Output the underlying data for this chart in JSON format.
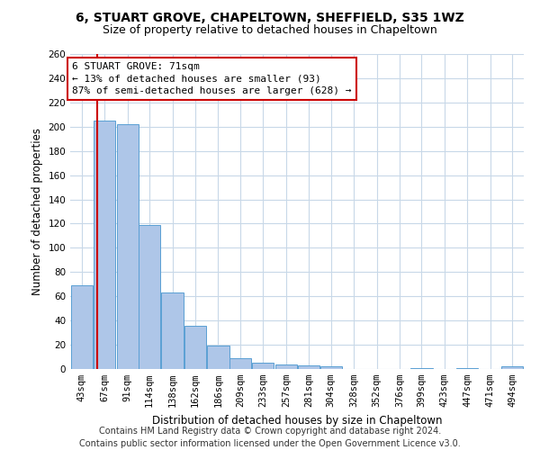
{
  "title_line1": "6, STUART GROVE, CHAPELTOWN, SHEFFIELD, S35 1WZ",
  "title_line2": "Size of property relative to detached houses in Chapeltown",
  "xlabel": "Distribution of detached houses by size in Chapeltown",
  "ylabel": "Number of detached properties",
  "bar_color": "#aec6e8",
  "bar_edge_color": "#5a9fd4",
  "vline_color": "#cc0000",
  "vline_x": 71,
  "annotation_line1": "6 STUART GROVE: 71sqm",
  "annotation_line2": "← 13% of detached houses are smaller (93)",
  "annotation_line3": "87% of semi-detached houses are larger (628) →",
  "annotation_box_color": "#ffffff",
  "annotation_box_edge": "#cc0000",
  "bins": [
    43,
    67,
    91,
    114,
    138,
    162,
    186,
    209,
    233,
    257,
    281,
    304,
    328,
    352,
    376,
    399,
    423,
    447,
    471,
    494,
    518
  ],
  "bar_heights": [
    69,
    205,
    202,
    119,
    63,
    36,
    19,
    9,
    5,
    4,
    3,
    2,
    0,
    0,
    0,
    1,
    0,
    1,
    0,
    2
  ],
  "ylim": [
    0,
    260
  ],
  "yticks": [
    0,
    20,
    40,
    60,
    80,
    100,
    120,
    140,
    160,
    180,
    200,
    220,
    240,
    260
  ],
  "footer_text": "Contains HM Land Registry data © Crown copyright and database right 2024.\nContains public sector information licensed under the Open Government Licence v3.0.",
  "background_color": "#ffffff",
  "grid_color": "#c8d8e8",
  "title_fontsize": 10,
  "subtitle_fontsize": 9,
  "tick_label_fontsize": 7.5,
  "axis_label_fontsize": 8.5,
  "footer_fontsize": 7,
  "annotation_fontsize": 8
}
